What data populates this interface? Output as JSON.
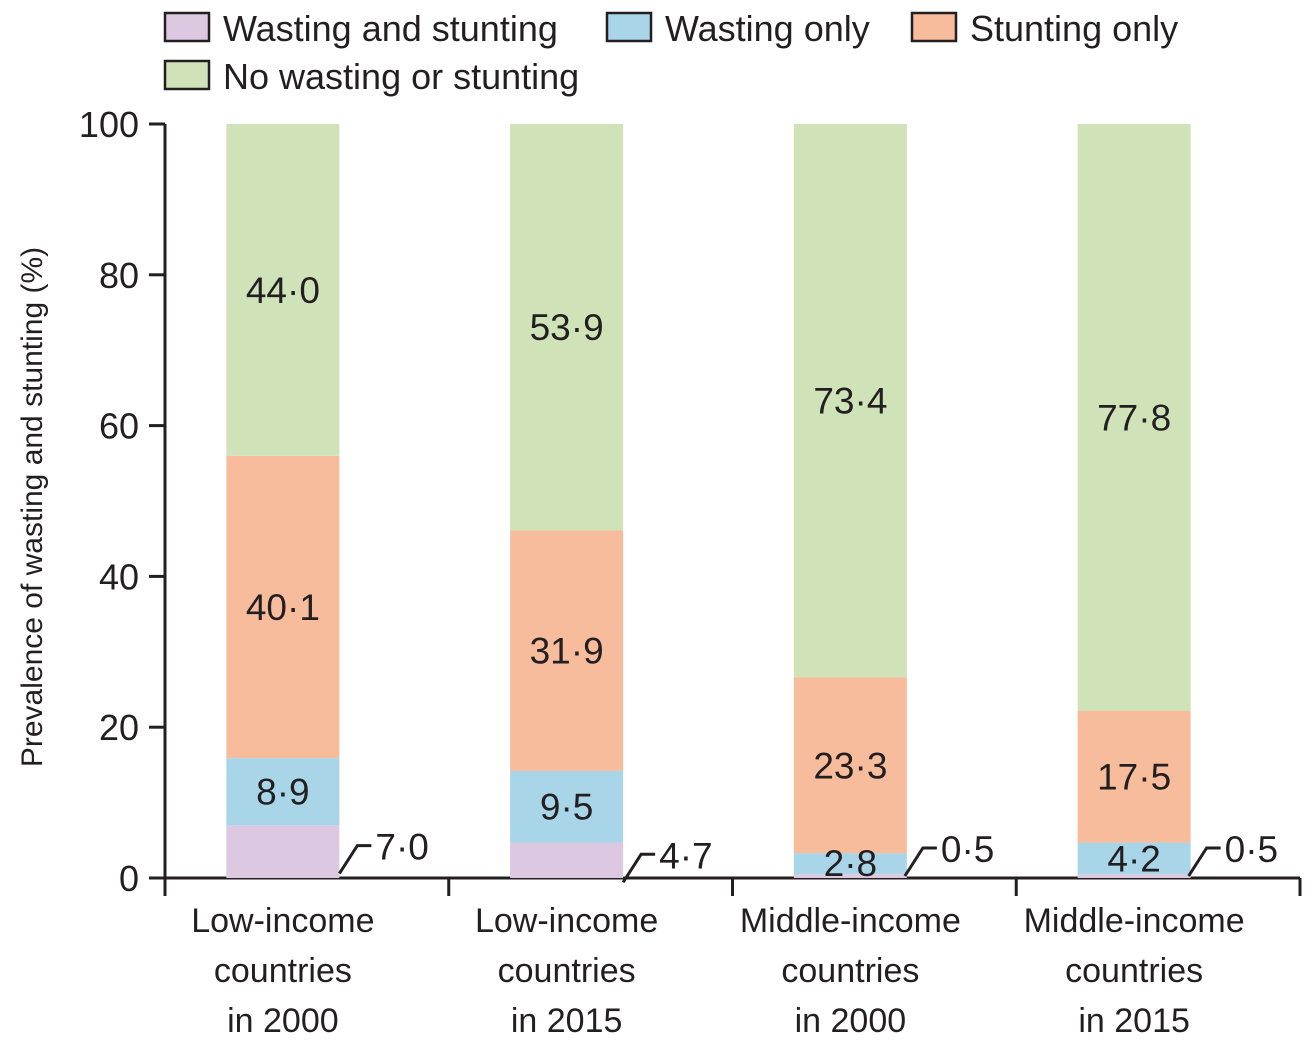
{
  "chart_data": {
    "type": "bar",
    "stacked": true,
    "ylabel": "Prevalence of wasting and stunting (%)",
    "ylim": [
      0,
      100
    ],
    "yticks": [
      "0",
      "20",
      "40",
      "60",
      "80",
      "100"
    ],
    "grid": false,
    "legend_position": "top-left",
    "categories": [
      [
        "Low-income",
        "countries",
        "in 2000"
      ],
      [
        "Low-income",
        "countries",
        "in 2015"
      ],
      [
        "Middle-income",
        "countries",
        "in 2000"
      ],
      [
        "Middle-income",
        "countries",
        "in 2015"
      ]
    ],
    "series": [
      {
        "name": "Wasting and stunting",
        "color": "#dcc8e1",
        "values": [
          7.0,
          4.7,
          0.5,
          0.5
        ],
        "labels": [
          "7·0",
          "4·7",
          "0·5",
          "0·5"
        ]
      },
      {
        "name": "Wasting only",
        "color": "#a9d5e8",
        "values": [
          8.9,
          9.5,
          2.8,
          4.2
        ],
        "labels": [
          "8·9",
          "9·5",
          "2·8",
          "4·2"
        ]
      },
      {
        "name": "Stunting only",
        "color": "#f7bc9c",
        "values": [
          40.1,
          31.9,
          23.3,
          17.5
        ],
        "labels": [
          "40·1",
          "31·9",
          "23·3",
          "17·5"
        ]
      },
      {
        "name": "No wasting or stunting",
        "color": "#cfe2b8",
        "values": [
          44.0,
          53.9,
          73.4,
          77.8
        ],
        "labels": [
          "44·0",
          "53·9",
          "73·4",
          "77·8"
        ]
      }
    ]
  }
}
